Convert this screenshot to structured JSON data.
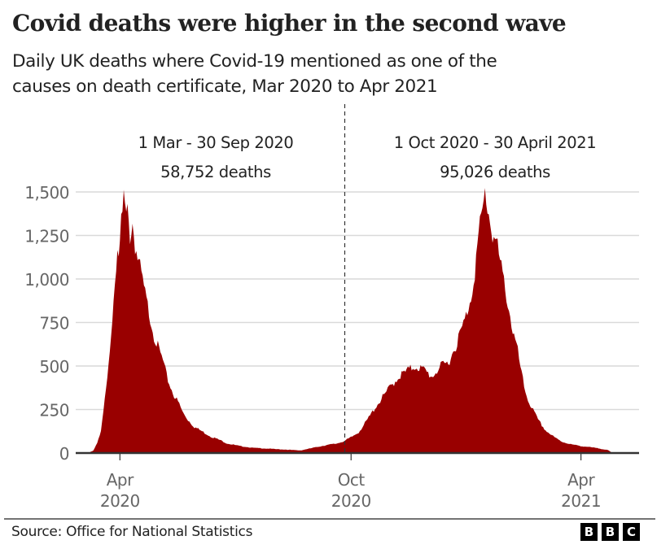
{
  "header": {
    "title": "Covid deaths were higher in the second wave",
    "subtitle_lines": [
      "Daily UK deaths where Covid-19 mentioned as one of the",
      "causes on death certificate, Mar 2020 to Apr 2021"
    ]
  },
  "annotations": [
    {
      "line1": "1 Mar - 30 Sep 2020",
      "line2": "58,752 deaths"
    },
    {
      "line1": "1 Oct 2020 - 30 April 2021",
      "line2": "95,026 deaths"
    }
  ],
  "footer": {
    "source": "Source: Office for National Statistics",
    "logo_letters": [
      "B",
      "B",
      "C"
    ]
  },
  "colors": {
    "area": "#990000",
    "grid": "#d9d9d9",
    "axis": "#333333",
    "tick_label": "#666666",
    "divider": "#333333"
  },
  "chart_data": {
    "type": "area",
    "title": "Covid deaths were higher in the second wave",
    "subtitle": "Daily UK deaths where Covid-19 mentioned as one of the causes on death certificate, Mar 2020 to Apr 2021",
    "xlabel": "",
    "ylabel": "",
    "x_unit": "days since 1 Apr 2020",
    "xlim": [
      -35,
      411
    ],
    "ylim": [
      0,
      1500
    ],
    "yticks": [
      0,
      250,
      500,
      750,
      1000,
      1250,
      1500
    ],
    "ytick_labels": [
      "0",
      "250",
      "500",
      "750",
      "1,000",
      "1,250",
      "1,500"
    ],
    "xticks": [
      {
        "day": 0,
        "label_month": "Apr",
        "label_year": "2020"
      },
      {
        "day": 183,
        "label_month": "Oct",
        "label_year": "2020"
      },
      {
        "day": 365,
        "label_month": "Apr",
        "label_year": "2021"
      }
    ],
    "divider_day": 178,
    "grid": true,
    "legend": "none",
    "series": [
      {
        "name": "Daily deaths",
        "x": [
          -25,
          -21,
          -18,
          -15,
          -12,
          -8,
          -5,
          -2,
          0,
          3,
          5,
          6,
          8,
          10,
          12,
          14,
          17,
          21,
          24,
          27,
          30,
          34,
          37,
          40,
          43,
          47,
          50,
          54,
          59,
          66,
          72,
          79,
          85,
          95,
          105,
          118,
          130,
          143,
          153,
          163,
          172,
          178,
          183,
          189,
          195,
          202,
          208,
          214,
          221,
          227,
          234,
          240,
          247,
          253,
          260,
          266,
          273,
          278,
          281,
          284,
          287,
          289,
          292,
          295,
          298,
          302,
          305,
          308,
          311,
          315,
          318,
          321,
          324,
          331,
          337,
          344,
          350,
          357,
          365,
          376,
          386,
          390
        ],
        "values": [
          0,
          15,
          60,
          130,
          300,
          560,
          900,
          1170,
          1220,
          1463,
          1350,
          1380,
          1250,
          1320,
          1200,
          1120,
          1020,
          870,
          780,
          680,
          610,
          530,
          440,
          380,
          330,
          280,
          230,
          190,
          150,
          120,
          95,
          75,
          55,
          40,
          30,
          25,
          20,
          15,
          30,
          45,
          55,
          70,
          90,
          120,
          180,
          260,
          320,
          380,
          440,
          470,
          500,
          480,
          440,
          490,
          520,
          620,
          760,
          900,
          1050,
          1250,
          1380,
          1490,
          1380,
          1260,
          1210,
          1050,
          950,
          830,
          700,
          580,
          450,
          350,
          290,
          190,
          130,
          90,
          65,
          50,
          40,
          30,
          18,
          0
        ]
      }
    ]
  }
}
